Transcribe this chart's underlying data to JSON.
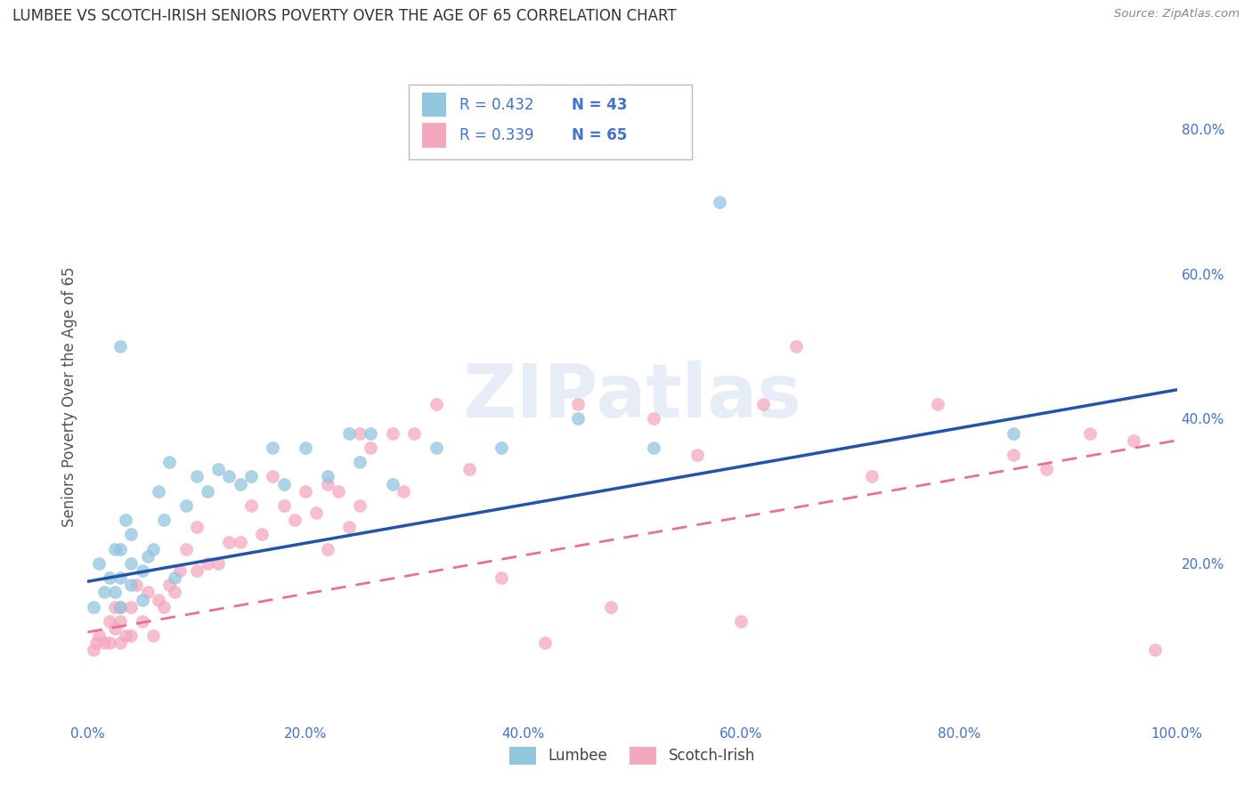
{
  "title": "LUMBEE VS SCOTCH-IRISH SENIORS POVERTY OVER THE AGE OF 65 CORRELATION CHART",
  "source": "Source: ZipAtlas.com",
  "ylabel": "Seniors Poverty Over the Age of 65",
  "xlim": [
    0,
    1.0
  ],
  "ylim": [
    -0.02,
    0.88
  ],
  "xticks": [
    0.0,
    0.2,
    0.4,
    0.6,
    0.8,
    1.0
  ],
  "yticks_right": [
    0.2,
    0.4,
    0.6,
    0.8
  ],
  "xticklabels": [
    "0.0%",
    "20.0%",
    "40.0%",
    "60.0%",
    "80.0%",
    "100.0%"
  ],
  "yticklabels_right": [
    "20.0%",
    "40.0%",
    "60.0%",
    "80.0%"
  ],
  "lumbee_color": "#92C5DE",
  "scotch_color": "#F4A8BE",
  "lumbee_R": 0.432,
  "lumbee_N": 43,
  "scotch_R": 0.339,
  "scotch_N": 65,
  "legend_text_color": "#4472C4",
  "legend_label1": "Lumbee",
  "legend_label2": "Scotch-Irish",
  "lumbee_line_color": "#2255AA",
  "scotch_line_color": "#E87090",
  "watermark": "ZIPatlas",
  "lumbee_line_x": [
    0.0,
    1.0
  ],
  "lumbee_line_y": [
    0.175,
    0.44
  ],
  "scotch_line_x": [
    0.0,
    1.0
  ],
  "scotch_line_y": [
    0.105,
    0.37
  ],
  "lumbee_scatter_x": [
    0.005,
    0.01,
    0.015,
    0.02,
    0.025,
    0.025,
    0.03,
    0.03,
    0.03,
    0.035,
    0.04,
    0.04,
    0.04,
    0.05,
    0.05,
    0.055,
    0.06,
    0.065,
    0.07,
    0.075,
    0.08,
    0.09,
    0.1,
    0.11,
    0.12,
    0.13,
    0.14,
    0.15,
    0.17,
    0.18,
    0.2,
    0.22,
    0.24,
    0.25,
    0.26,
    0.28,
    0.32,
    0.38,
    0.45,
    0.52,
    0.58,
    0.85,
    0.03
  ],
  "lumbee_scatter_y": [
    0.14,
    0.2,
    0.16,
    0.18,
    0.16,
    0.22,
    0.14,
    0.18,
    0.22,
    0.26,
    0.17,
    0.2,
    0.24,
    0.15,
    0.19,
    0.21,
    0.22,
    0.3,
    0.26,
    0.34,
    0.18,
    0.28,
    0.32,
    0.3,
    0.33,
    0.32,
    0.31,
    0.32,
    0.36,
    0.31,
    0.36,
    0.32,
    0.38,
    0.34,
    0.38,
    0.31,
    0.36,
    0.36,
    0.4,
    0.36,
    0.7,
    0.38,
    0.5
  ],
  "scotch_scatter_x": [
    0.005,
    0.008,
    0.01,
    0.015,
    0.02,
    0.02,
    0.025,
    0.025,
    0.03,
    0.03,
    0.03,
    0.035,
    0.04,
    0.04,
    0.045,
    0.05,
    0.055,
    0.06,
    0.065,
    0.07,
    0.075,
    0.08,
    0.085,
    0.09,
    0.1,
    0.1,
    0.11,
    0.12,
    0.13,
    0.14,
    0.15,
    0.16,
    0.17,
    0.18,
    0.19,
    0.2,
    0.21,
    0.22,
    0.22,
    0.23,
    0.24,
    0.25,
    0.25,
    0.26,
    0.28,
    0.29,
    0.3,
    0.32,
    0.35,
    0.38,
    0.42,
    0.45,
    0.48,
    0.52,
    0.56,
    0.6,
    0.62,
    0.65,
    0.72,
    0.78,
    0.85,
    0.88,
    0.92,
    0.96,
    0.98
  ],
  "scotch_scatter_y": [
    0.08,
    0.09,
    0.1,
    0.09,
    0.09,
    0.12,
    0.11,
    0.14,
    0.09,
    0.12,
    0.14,
    0.1,
    0.1,
    0.14,
    0.17,
    0.12,
    0.16,
    0.1,
    0.15,
    0.14,
    0.17,
    0.16,
    0.19,
    0.22,
    0.19,
    0.25,
    0.2,
    0.2,
    0.23,
    0.23,
    0.28,
    0.24,
    0.32,
    0.28,
    0.26,
    0.3,
    0.27,
    0.31,
    0.22,
    0.3,
    0.25,
    0.38,
    0.28,
    0.36,
    0.38,
    0.3,
    0.38,
    0.42,
    0.33,
    0.18,
    0.09,
    0.42,
    0.14,
    0.4,
    0.35,
    0.12,
    0.42,
    0.5,
    0.32,
    0.42,
    0.35,
    0.33,
    0.38,
    0.37,
    0.08
  ],
  "background_color": "#FFFFFF",
  "grid_color": "#CCCCCC"
}
